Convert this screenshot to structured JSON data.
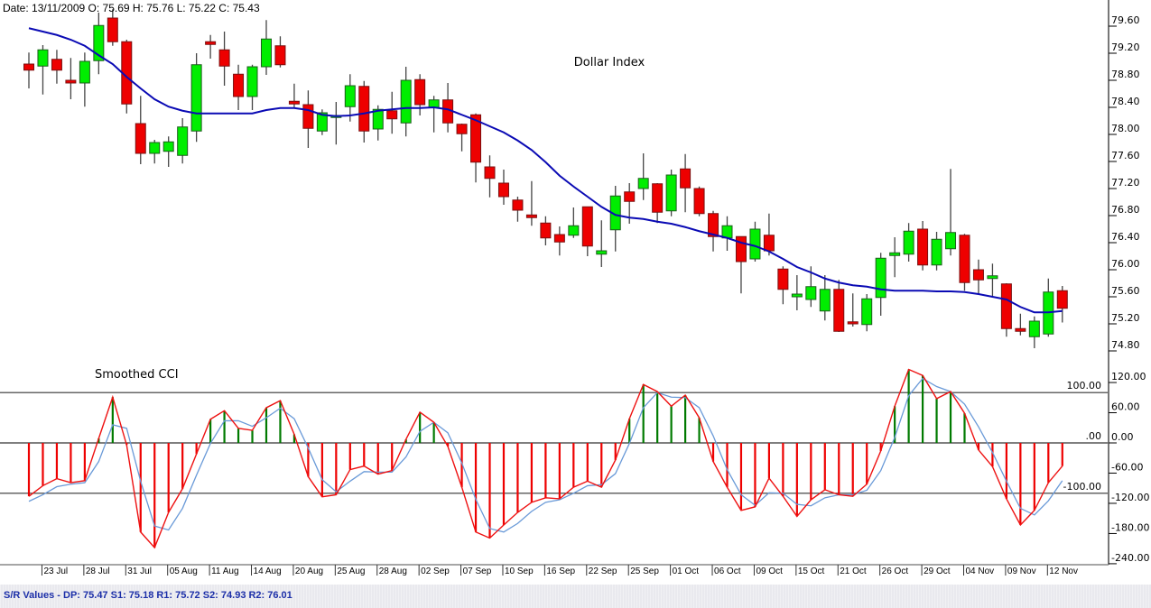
{
  "header": {
    "date_ohlc": "Date: 13/11/2009 O: 75.69 H: 75.76 L: 75.22 C: 75.43"
  },
  "status_bar": {
    "sr_values": "S/R Values - DP: 75.47 S1: 75.18 R1: 75.72 S2: 74.93 R2: 76.01"
  },
  "colors": {
    "up": "#00ee00",
    "down": "#ee0000",
    "ma": "#0a0ab4",
    "cci": "#ee1111",
    "cci_smooth": "#6a9ad8",
    "hist_up": "#007a00",
    "hist_down": "#ee0000"
  },
  "chart_data": [
    {
      "type": "candlestick",
      "title": "Dollar Index",
      "ylim": [
        74.8,
        79.6
      ],
      "y_ticks": [
        "79.60",
        "79.20",
        "78.80",
        "78.40",
        "78.00",
        "77.60",
        "77.20",
        "76.80",
        "76.40",
        "76.00",
        "75.60",
        "75.20",
        "74.80"
      ],
      "x_tick_labels": [
        {
          "index": 1,
          "label": "23 Jul"
        },
        {
          "index": 4,
          "label": "28 Jul"
        },
        {
          "index": 7,
          "label": "31 Jul"
        },
        {
          "index": 10,
          "label": "05 Aug"
        },
        {
          "index": 13,
          "label": "11 Aug"
        },
        {
          "index": 16,
          "label": "14 Aug"
        },
        {
          "index": 19,
          "label": "20 Aug"
        },
        {
          "index": 22,
          "label": "25 Aug"
        },
        {
          "index": 25,
          "label": "28 Aug"
        },
        {
          "index": 28,
          "label": "02 Sep"
        },
        {
          "index": 31,
          "label": "07 Sep"
        },
        {
          "index": 34,
          "label": "10 Sep"
        },
        {
          "index": 37,
          "label": "16 Sep"
        },
        {
          "index": 40,
          "label": "22 Sep"
        },
        {
          "index": 43,
          "label": "25 Sep"
        },
        {
          "index": 46,
          "label": "01 Oct"
        },
        {
          "index": 49,
          "label": "06 Oct"
        },
        {
          "index": 52,
          "label": "09 Oct"
        },
        {
          "index": 55,
          "label": "15 Oct"
        },
        {
          "index": 58,
          "label": "21 Oct"
        },
        {
          "index": 61,
          "label": "26 Oct"
        },
        {
          "index": 64,
          "label": "29 Oct"
        },
        {
          "index": 67,
          "label": "04 Nov"
        },
        {
          "index": 70,
          "label": "09 Nov"
        },
        {
          "index": 73,
          "label": "12 Nov"
        }
      ],
      "ohlc": [
        [
          79.04,
          79.21,
          78.68,
          78.95
        ],
        [
          79.01,
          79.32,
          78.59,
          79.25
        ],
        [
          79.11,
          79.25,
          78.75,
          78.95
        ],
        [
          78.8,
          79.13,
          78.52,
          78.76
        ],
        [
          78.76,
          79.21,
          78.41,
          79.08
        ],
        [
          79.09,
          79.8,
          78.89,
          79.61
        ],
        [
          79.72,
          79.85,
          79.31,
          79.37
        ],
        [
          79.37,
          79.4,
          78.31,
          78.45
        ],
        [
          78.16,
          78.57,
          77.56,
          77.72
        ],
        [
          77.72,
          77.92,
          77.57,
          77.88
        ],
        [
          77.75,
          77.97,
          77.52,
          77.89
        ],
        [
          77.69,
          78.24,
          77.57,
          78.11
        ],
        [
          78.05,
          79.2,
          77.89,
          79.03
        ],
        [
          79.37,
          79.47,
          79.12,
          79.33
        ],
        [
          79.25,
          79.52,
          78.72,
          79.01
        ],
        [
          78.89,
          79.03,
          78.36,
          78.56
        ],
        [
          78.56,
          79.03,
          78.36,
          79.0
        ],
        [
          79.0,
          79.69,
          78.88,
          79.41
        ],
        [
          79.31,
          79.45,
          78.99,
          79.03
        ],
        [
          78.49,
          78.75,
          78.39,
          78.45
        ],
        [
          78.44,
          78.65,
          77.8,
          78.09
        ],
        [
          78.05,
          78.37,
          77.99,
          78.32
        ],
        [
          78.25,
          78.48,
          77.85,
          78.28
        ],
        [
          78.41,
          78.89,
          78.19,
          78.72
        ],
        [
          78.71,
          78.79,
          77.88,
          78.05
        ],
        [
          78.08,
          78.43,
          77.91,
          78.37
        ],
        [
          78.35,
          78.63,
          78.01,
          78.23
        ],
        [
          78.17,
          79.0,
          77.97,
          78.8
        ],
        [
          78.81,
          78.89,
          78.28,
          78.44
        ],
        [
          78.4,
          78.57,
          78.03,
          78.51
        ],
        [
          78.51,
          78.76,
          78.03,
          78.17
        ],
        [
          78.15,
          78.16,
          77.75,
          78.01
        ],
        [
          78.29,
          78.31,
          77.29,
          77.59
        ],
        [
          77.52,
          77.69,
          77.07,
          77.35
        ],
        [
          77.28,
          77.48,
          76.96,
          77.08
        ],
        [
          77.03,
          77.08,
          76.71,
          76.88
        ],
        [
          76.81,
          77.31,
          76.65,
          76.77
        ],
        [
          76.69,
          76.79,
          76.36,
          76.47
        ],
        [
          76.52,
          76.64,
          76.21,
          76.41
        ],
        [
          76.51,
          76.92,
          76.47,
          76.65
        ],
        [
          76.93,
          76.93,
          76.2,
          76.35
        ],
        [
          76.23,
          76.73,
          76.04,
          76.28
        ],
        [
          76.59,
          77.24,
          76.27,
          77.09
        ],
        [
          77.15,
          77.28,
          76.68,
          77.01
        ],
        [
          77.2,
          77.72,
          77.03,
          77.35
        ],
        [
          77.27,
          77.28,
          76.69,
          76.85
        ],
        [
          76.87,
          77.48,
          76.79,
          77.4
        ],
        [
          77.49,
          77.71,
          76.85,
          77.21
        ],
        [
          77.2,
          77.23,
          76.79,
          76.83
        ],
        [
          76.83,
          76.87,
          76.27,
          76.49
        ],
        [
          76.47,
          76.79,
          76.28,
          76.65
        ],
        [
          76.49,
          76.49,
          75.65,
          76.12
        ],
        [
          76.16,
          76.71,
          76.12,
          76.6
        ],
        [
          76.51,
          76.83,
          76.21,
          76.28
        ],
        [
          76.01,
          76.05,
          75.49,
          75.71
        ],
        [
          75.6,
          75.92,
          75.4,
          75.64
        ],
        [
          75.56,
          76.05,
          75.45,
          75.75
        ],
        [
          75.39,
          75.92,
          75.25,
          75.71
        ],
        [
          75.71,
          75.85,
          75.08,
          75.09
        ],
        [
          75.23,
          75.65,
          75.16,
          75.2
        ],
        [
          75.19,
          75.64,
          75.09,
          75.57
        ],
        [
          75.59,
          76.25,
          75.32,
          76.17
        ],
        [
          76.21,
          76.48,
          75.89,
          76.25
        ],
        [
          76.23,
          76.69,
          76.12,
          76.57
        ],
        [
          76.6,
          76.72,
          75.99,
          76.07
        ],
        [
          76.07,
          76.56,
          75.99,
          76.45
        ],
        [
          76.31,
          77.49,
          76.21,
          76.55
        ],
        [
          76.51,
          76.53,
          75.69,
          75.81
        ],
        [
          76.0,
          76.15,
          75.64,
          75.85
        ],
        [
          75.87,
          76.09,
          75.59,
          75.91
        ],
        [
          75.79,
          75.8,
          75.01,
          75.13
        ],
        [
          75.13,
          75.35,
          75.03,
          75.09
        ],
        [
          75.01,
          75.31,
          74.84,
          75.24
        ],
        [
          75.05,
          75.87,
          75.01,
          75.67
        ],
        [
          75.69,
          75.76,
          75.22,
          75.43
        ]
      ],
      "moving_average": [
        79.57,
        79.52,
        79.47,
        79.4,
        79.31,
        79.17,
        79.04,
        78.85,
        78.68,
        78.52,
        78.41,
        78.35,
        78.31,
        78.31,
        78.31,
        78.31,
        78.31,
        78.36,
        78.39,
        78.39,
        78.36,
        78.29,
        78.27,
        78.28,
        78.31,
        78.35,
        78.37,
        78.39,
        78.39,
        78.4,
        78.37,
        78.29,
        78.21,
        78.12,
        78.03,
        77.91,
        77.77,
        77.59,
        77.39,
        77.23,
        77.08,
        76.93,
        76.81,
        76.77,
        76.75,
        76.71,
        76.68,
        76.63,
        76.57,
        76.52,
        76.47,
        76.4,
        76.35,
        76.27,
        76.16,
        76.04,
        75.96,
        75.87,
        75.81,
        75.77,
        75.75,
        75.71,
        75.69,
        75.69,
        75.69,
        75.68,
        75.68,
        75.67,
        75.64,
        75.6,
        75.56,
        75.45,
        75.37,
        75.37,
        75.39
      ]
    },
    {
      "type": "line+histogram",
      "title": "Smoothed CCI",
      "ylim": [
        -240,
        140
      ],
      "y_ticks": [
        "120.00",
        "60.00",
        "0.00",
        "-60.00",
        "-120.00",
        "-180.00",
        "-240.00"
      ],
      "levels": [
        {
          "value": 100,
          "label": "100.00"
        },
        {
          "value": 0,
          "label": ".00"
        },
        {
          "value": -100,
          "label": "-100.00"
        }
      ],
      "cci": [
        -106,
        -85,
        -71,
        -79,
        -75,
        9,
        91,
        -4,
        -177,
        -208,
        -138,
        -91,
        -22,
        47,
        64,
        29,
        25,
        70,
        84,
        17,
        -67,
        -107,
        -103,
        -53,
        -46,
        -62,
        -55,
        7,
        61,
        41,
        -7,
        -88,
        -177,
        -189,
        -163,
        -138,
        -118,
        -109,
        -111,
        -88,
        -76,
        -88,
        -34,
        48,
        116,
        102,
        73,
        95,
        50,
        -37,
        -88,
        -134,
        -127,
        -70,
        -106,
        -146,
        -113,
        -93,
        -103,
        -106,
        -82,
        -16,
        73,
        146,
        134,
        88,
        102,
        59,
        -14,
        -47,
        -111,
        -163,
        -134,
        -79,
        -46
      ],
      "cci_smoothed": [
        -116,
        -103,
        -87,
        -82,
        -79,
        -37,
        36,
        29,
        -76,
        -165,
        -173,
        -130,
        -64,
        -1,
        44,
        44,
        33,
        50,
        69,
        48,
        -10,
        -73,
        -97,
        -76,
        -57,
        -58,
        -58,
        -28,
        23,
        41,
        20,
        -40,
        -112,
        -170,
        -177,
        -160,
        -136,
        -118,
        -113,
        -100,
        -85,
        -83,
        -61,
        -1,
        70,
        100,
        91,
        90,
        70,
        14,
        -53,
        -103,
        -124,
        -99,
        -100,
        -122,
        -125,
        -109,
        -103,
        -103,
        -94,
        -55,
        11,
        94,
        128,
        112,
        102,
        77,
        32,
        -19,
        -76,
        -130,
        -143,
        -115,
        -75
      ]
    }
  ]
}
